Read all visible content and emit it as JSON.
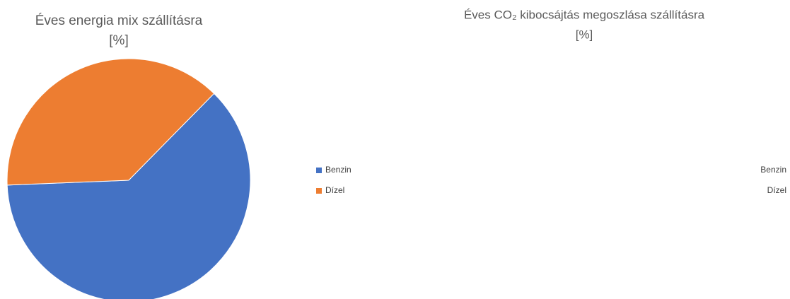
{
  "chart_data": [
    {
      "type": "pie",
      "title": [
        "Éves energia mix szállításra",
        "[%]"
      ],
      "categories": [
        "Benzin",
        "Dízel"
      ],
      "values": [
        62,
        38
      ],
      "colors": [
        "#4472c4",
        "#ed7d31"
      ],
      "legend": "right"
    },
    {
      "type": "pie",
      "title": [
        "Éves CO₂ kibocsájtás megoszlása szállításra",
        "[%]"
      ],
      "categories": [
        "Benzin",
        "Dízel"
      ],
      "legend": "right"
    }
  ]
}
